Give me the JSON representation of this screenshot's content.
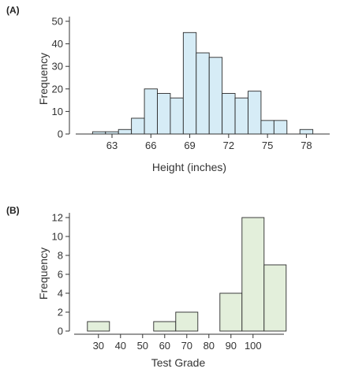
{
  "panels": {
    "a_label": "(A)",
    "b_label": "(B)"
  },
  "colors": {
    "bar_fill_a": "#d6ecf6",
    "bar_fill_b": "#e3efdb",
    "bar_stroke": "#2b2b2b",
    "axis": "#333333"
  },
  "chart_data": [
    {
      "type": "bar",
      "title": "",
      "xlabel": "Height (inches)",
      "ylabel": "Frequency",
      "bin_width": 1,
      "bins": [
        61.5,
        62.5,
        63.5,
        64.5,
        65.5,
        66.5,
        67.5,
        68.5,
        69.5,
        70.5,
        71.5,
        72.5,
        73.5,
        74.5,
        75.5,
        76.5,
        77.5
      ],
      "values": [
        1,
        1,
        2,
        7,
        20,
        18,
        16,
        45,
        36,
        34,
        18,
        16,
        19,
        6,
        6,
        0,
        2
      ],
      "xticks": [
        "63",
        "66",
        "69",
        "72",
        "75",
        "78"
      ],
      "xtick_values": [
        63,
        66,
        69,
        72,
        75,
        78
      ],
      "yticks": [
        "0",
        "10",
        "20",
        "30",
        "40",
        "50"
      ],
      "ytick_values": [
        0,
        10,
        20,
        30,
        40,
        50
      ],
      "xlim": [
        60.2,
        79.8
      ],
      "ylim": [
        0,
        50
      ],
      "grid": false
    },
    {
      "type": "bar",
      "title": "",
      "xlabel": "Test Grade",
      "ylabel": "Frequency",
      "bin_width": 10,
      "bins": [
        25,
        55,
        65,
        85,
        95,
        105
      ],
      "values": [
        1,
        1,
        2,
        4,
        12,
        7
      ],
      "xticks": [
        "30",
        "40",
        "50",
        "60",
        "70",
        "80",
        "90",
        "100"
      ],
      "xtick_values": [
        30,
        40,
        50,
        60,
        70,
        80,
        90,
        100
      ],
      "yticks": [
        "0",
        "2",
        "4",
        "6",
        "8",
        "10",
        "12"
      ],
      "ytick_values": [
        0,
        2,
        4,
        6,
        8,
        10,
        12
      ],
      "xlim": [
        19,
        114
      ],
      "ylim": [
        0,
        12
      ],
      "grid": false
    }
  ]
}
